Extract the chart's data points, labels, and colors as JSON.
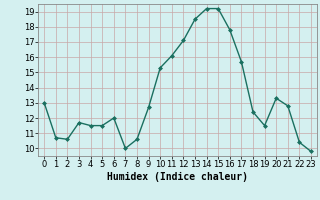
{
  "x": [
    0,
    1,
    2,
    3,
    4,
    5,
    6,
    7,
    8,
    9,
    10,
    11,
    12,
    13,
    14,
    15,
    16,
    17,
    18,
    19,
    20,
    21,
    22,
    23
  ],
  "y": [
    13,
    10.7,
    10.6,
    11.7,
    11.5,
    11.5,
    12.0,
    10.0,
    10.6,
    12.7,
    15.3,
    16.1,
    17.1,
    18.5,
    19.2,
    19.2,
    17.8,
    15.7,
    12.4,
    11.5,
    13.3,
    12.8,
    10.4,
    9.8
  ],
  "line_color": "#1a7060",
  "marker": "D",
  "marker_size": 2,
  "bg_color": "#d4f0f0",
  "grid_color": "#c8a8a8",
  "xlabel": "Humidex (Indice chaleur)",
  "ylim": [
    9.5,
    19.5
  ],
  "xlim": [
    -0.5,
    23.5
  ],
  "yticks": [
    10,
    11,
    12,
    13,
    14,
    15,
    16,
    17,
    18,
    19
  ],
  "xticks": [
    0,
    1,
    2,
    3,
    4,
    5,
    6,
    7,
    8,
    9,
    10,
    11,
    12,
    13,
    14,
    15,
    16,
    17,
    18,
    19,
    20,
    21,
    22,
    23
  ],
  "label_fontsize": 7,
  "tick_fontsize": 6
}
